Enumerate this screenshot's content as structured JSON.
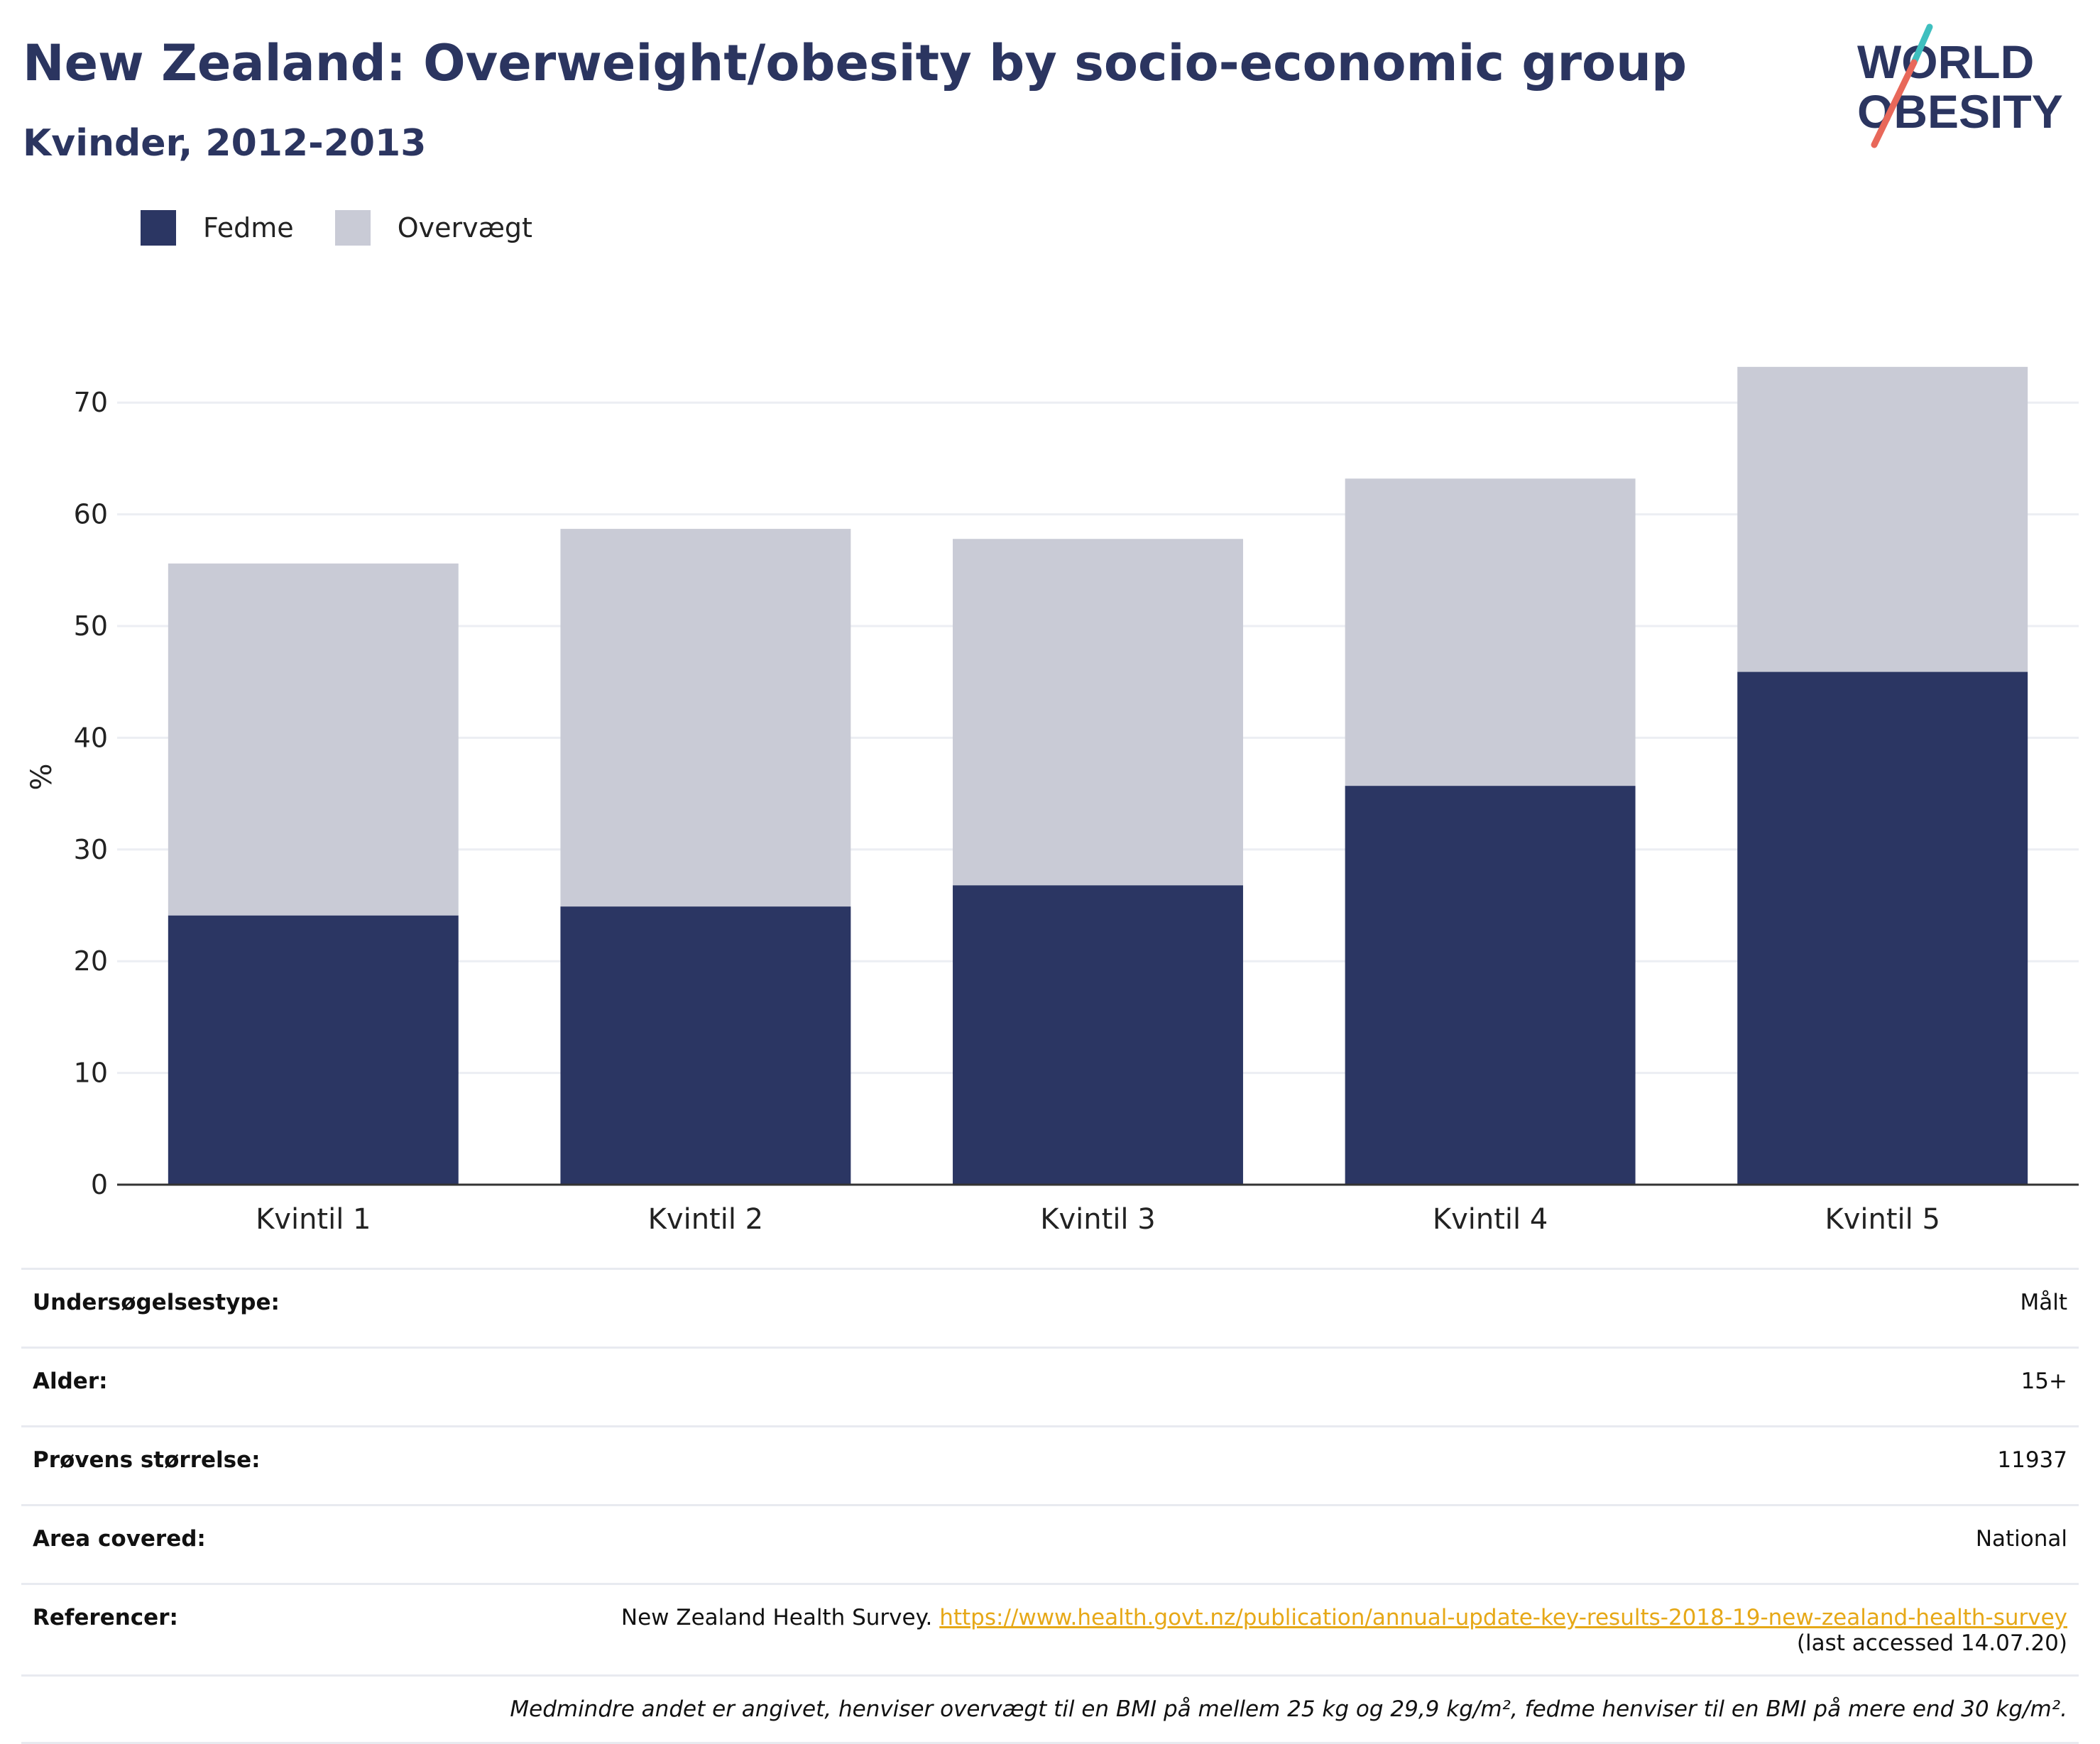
{
  "header": {
    "title": "New Zealand: Overweight/obesity by socio-economic group",
    "subtitle": "Kvinder, 2012-2013"
  },
  "logo": {
    "line1": "WORLD",
    "line2": "OBESITY",
    "colors": {
      "text": "#2b3560",
      "slash_red": "#e8685a",
      "slash_teal": "#3fbfbf"
    }
  },
  "legend": {
    "items": [
      {
        "label": "Fedme",
        "color": "#2b3663"
      },
      {
        "label": "Overvægt",
        "color": "#c9cbd6"
      }
    ]
  },
  "chart_data": {
    "type": "bar",
    "stacked": true,
    "categories": [
      "Kvintil 1",
      "Kvintil 2",
      "Kvintil 3",
      "Kvintil 4",
      "Kvintil 5"
    ],
    "series": [
      {
        "name": "Fedme",
        "values": [
          24.1,
          24.9,
          26.8,
          35.7,
          45.9
        ],
        "color": "#2b3663"
      },
      {
        "name": "Overvægt",
        "values": [
          31.5,
          33.8,
          31.0,
          27.5,
          27.3
        ],
        "color": "#c9cbd6"
      }
    ],
    "ylabel": "%",
    "ylim": [
      0,
      73
    ],
    "yticks": [
      0,
      10,
      20,
      30,
      40,
      50,
      60,
      70
    ],
    "grid": true,
    "legend_position": "top-left"
  },
  "info": {
    "rows": [
      {
        "label": "Undersøgelsestype:",
        "value": "Målt"
      },
      {
        "label": "Alder:",
        "value": "15+"
      },
      {
        "label": "Prøvens størrelse:",
        "value": "11937"
      },
      {
        "label": "Area covered:",
        "value": "National"
      }
    ],
    "reference": {
      "label": "Referencer:",
      "prefix": "New Zealand Health Survey.",
      "link": "https://www.health.govt.nz/publication/annual-update-key-results-2018-19-new-zealand-health-survey",
      "accessed": "(last accessed 14.07.20)"
    },
    "note": "Medmindre andet er angivet, henviser overvægt til en BMI på mellem 25 kg og 29,9 kg/m², fedme henviser til en BMI på mere end 30 kg/m²."
  }
}
